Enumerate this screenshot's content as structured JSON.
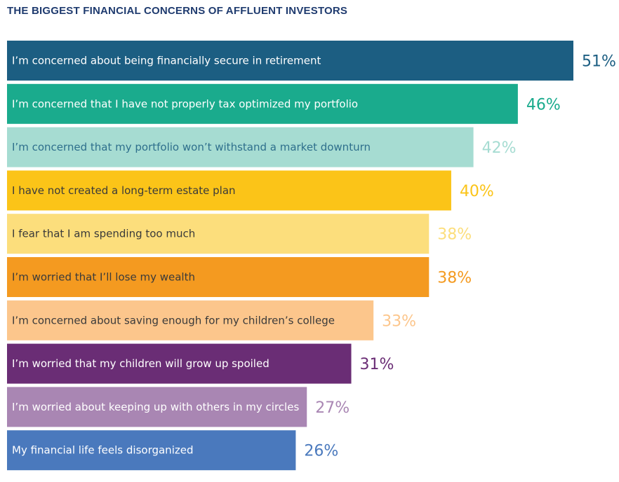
{
  "chart_data": {
    "type": "bar",
    "orientation": "horizontal",
    "title": "THE BIGGEST FINANCIAL CONCERNS OF AFFLUENT INVESTORS",
    "categories": [
      "I’m concerned about being financially secure in retirement",
      "I’m concerned that I have not properly tax optimized my portfolio",
      "I’m concerned that my portfolio won’t withstand a market downturn",
      "I have not created a long-term estate plan",
      "I fear that I am spending too much",
      "I’m worried that I’ll lose my wealth",
      "I’m concerned about saving enough for my children’s college",
      "I’m worried that my children will grow up spoiled",
      "I’m worried about keeping up with others in my circles",
      "My financial life feels disorganized"
    ],
    "values": [
      51,
      46,
      42,
      40,
      38,
      38,
      33,
      31,
      27,
      26
    ],
    "value_labels": [
      "51%",
      "46%",
      "42%",
      "40%",
      "38%",
      "38%",
      "33%",
      "31%",
      "27%",
      "26%"
    ],
    "bar_colors": [
      "#1c5e82",
      "#1aab8d",
      "#a6dcd2",
      "#fbc418",
      "#fcde7c",
      "#f49a20",
      "#fcc68c",
      "#6a2d75",
      "#a986b3",
      "#4a79bd"
    ],
    "bar_text_colors": [
      "#ffffff",
      "#ffffff",
      "#2e6f8c",
      "#3a3a3a",
      "#3a3a3a",
      "#3a3a3a",
      "#3a3a3a",
      "#ffffff",
      "#ffffff",
      "#ffffff"
    ],
    "value_label_colors": [
      "#1c5e82",
      "#1aab8d",
      "#a6dcd2",
      "#fbc418",
      "#fcde7c",
      "#f49a20",
      "#fcc68c",
      "#6a2d75",
      "#a986b3",
      "#4a79bd"
    ],
    "xlim": [
      0,
      51
    ],
    "grid": false,
    "legend": "none"
  }
}
